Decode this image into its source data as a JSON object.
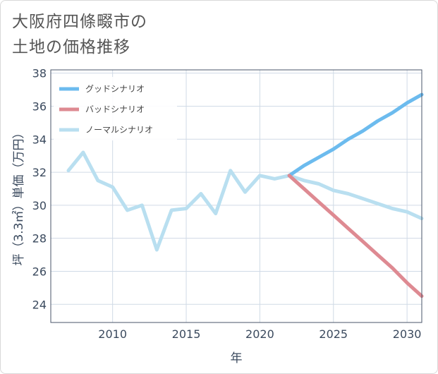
{
  "title": {
    "line1": "大阪府四條畷市の",
    "line2": "土地の価格推移"
  },
  "colors": {
    "good": "#6cbbee",
    "bad": "#de8a92",
    "normal": "#b9dff0",
    "grid": "#d0dae6",
    "axis": "#3b4a5e"
  },
  "chart_data": {
    "type": "line",
    "title": "大阪府四條畷市の土地の価格推移",
    "xlabel": "年",
    "ylabel": "坪（3.3㎡）単価（万円）",
    "xlim": [
      2005.8,
      2031
    ],
    "ylim": [
      22.9,
      38.2
    ],
    "xticks": [
      2010,
      2015,
      2020,
      2025,
      2030
    ],
    "yticks": [
      24,
      26,
      28,
      30,
      32,
      34,
      36,
      38
    ],
    "legend_position": "top-left",
    "series": [
      {
        "name": "グッドシナリオ",
        "color": "#6cbbee",
        "x": [
          2022,
          2023,
          2024,
          2025,
          2026,
          2027,
          2028,
          2029,
          2030,
          2031
        ],
        "y": [
          31.8,
          32.4,
          32.9,
          33.4,
          34.0,
          34.5,
          35.1,
          35.6,
          36.2,
          36.7
        ]
      },
      {
        "name": "バッドシナリオ",
        "color": "#de8a92",
        "x": [
          2022,
          2023,
          2024,
          2025,
          2026,
          2027,
          2028,
          2029,
          2030,
          2031
        ],
        "y": [
          31.8,
          31.0,
          30.2,
          29.4,
          28.6,
          27.8,
          27.0,
          26.2,
          25.3,
          24.5
        ]
      },
      {
        "name": "ノーマルシナリオ",
        "color": "#b9dff0",
        "x": [
          2007,
          2008,
          2009,
          2010,
          2011,
          2012,
          2013,
          2014,
          2015,
          2016,
          2017,
          2018,
          2019,
          2020,
          2021,
          2022,
          2023,
          2024,
          2025,
          2026,
          2027,
          2028,
          2029,
          2030,
          2031
        ],
        "y": [
          32.1,
          33.2,
          31.5,
          31.1,
          29.7,
          30.0,
          27.3,
          29.7,
          29.8,
          30.7,
          29.5,
          32.1,
          30.8,
          31.8,
          31.6,
          31.8,
          31.5,
          31.3,
          30.9,
          30.7,
          30.4,
          30.1,
          29.8,
          29.6,
          29.2
        ]
      }
    ]
  }
}
